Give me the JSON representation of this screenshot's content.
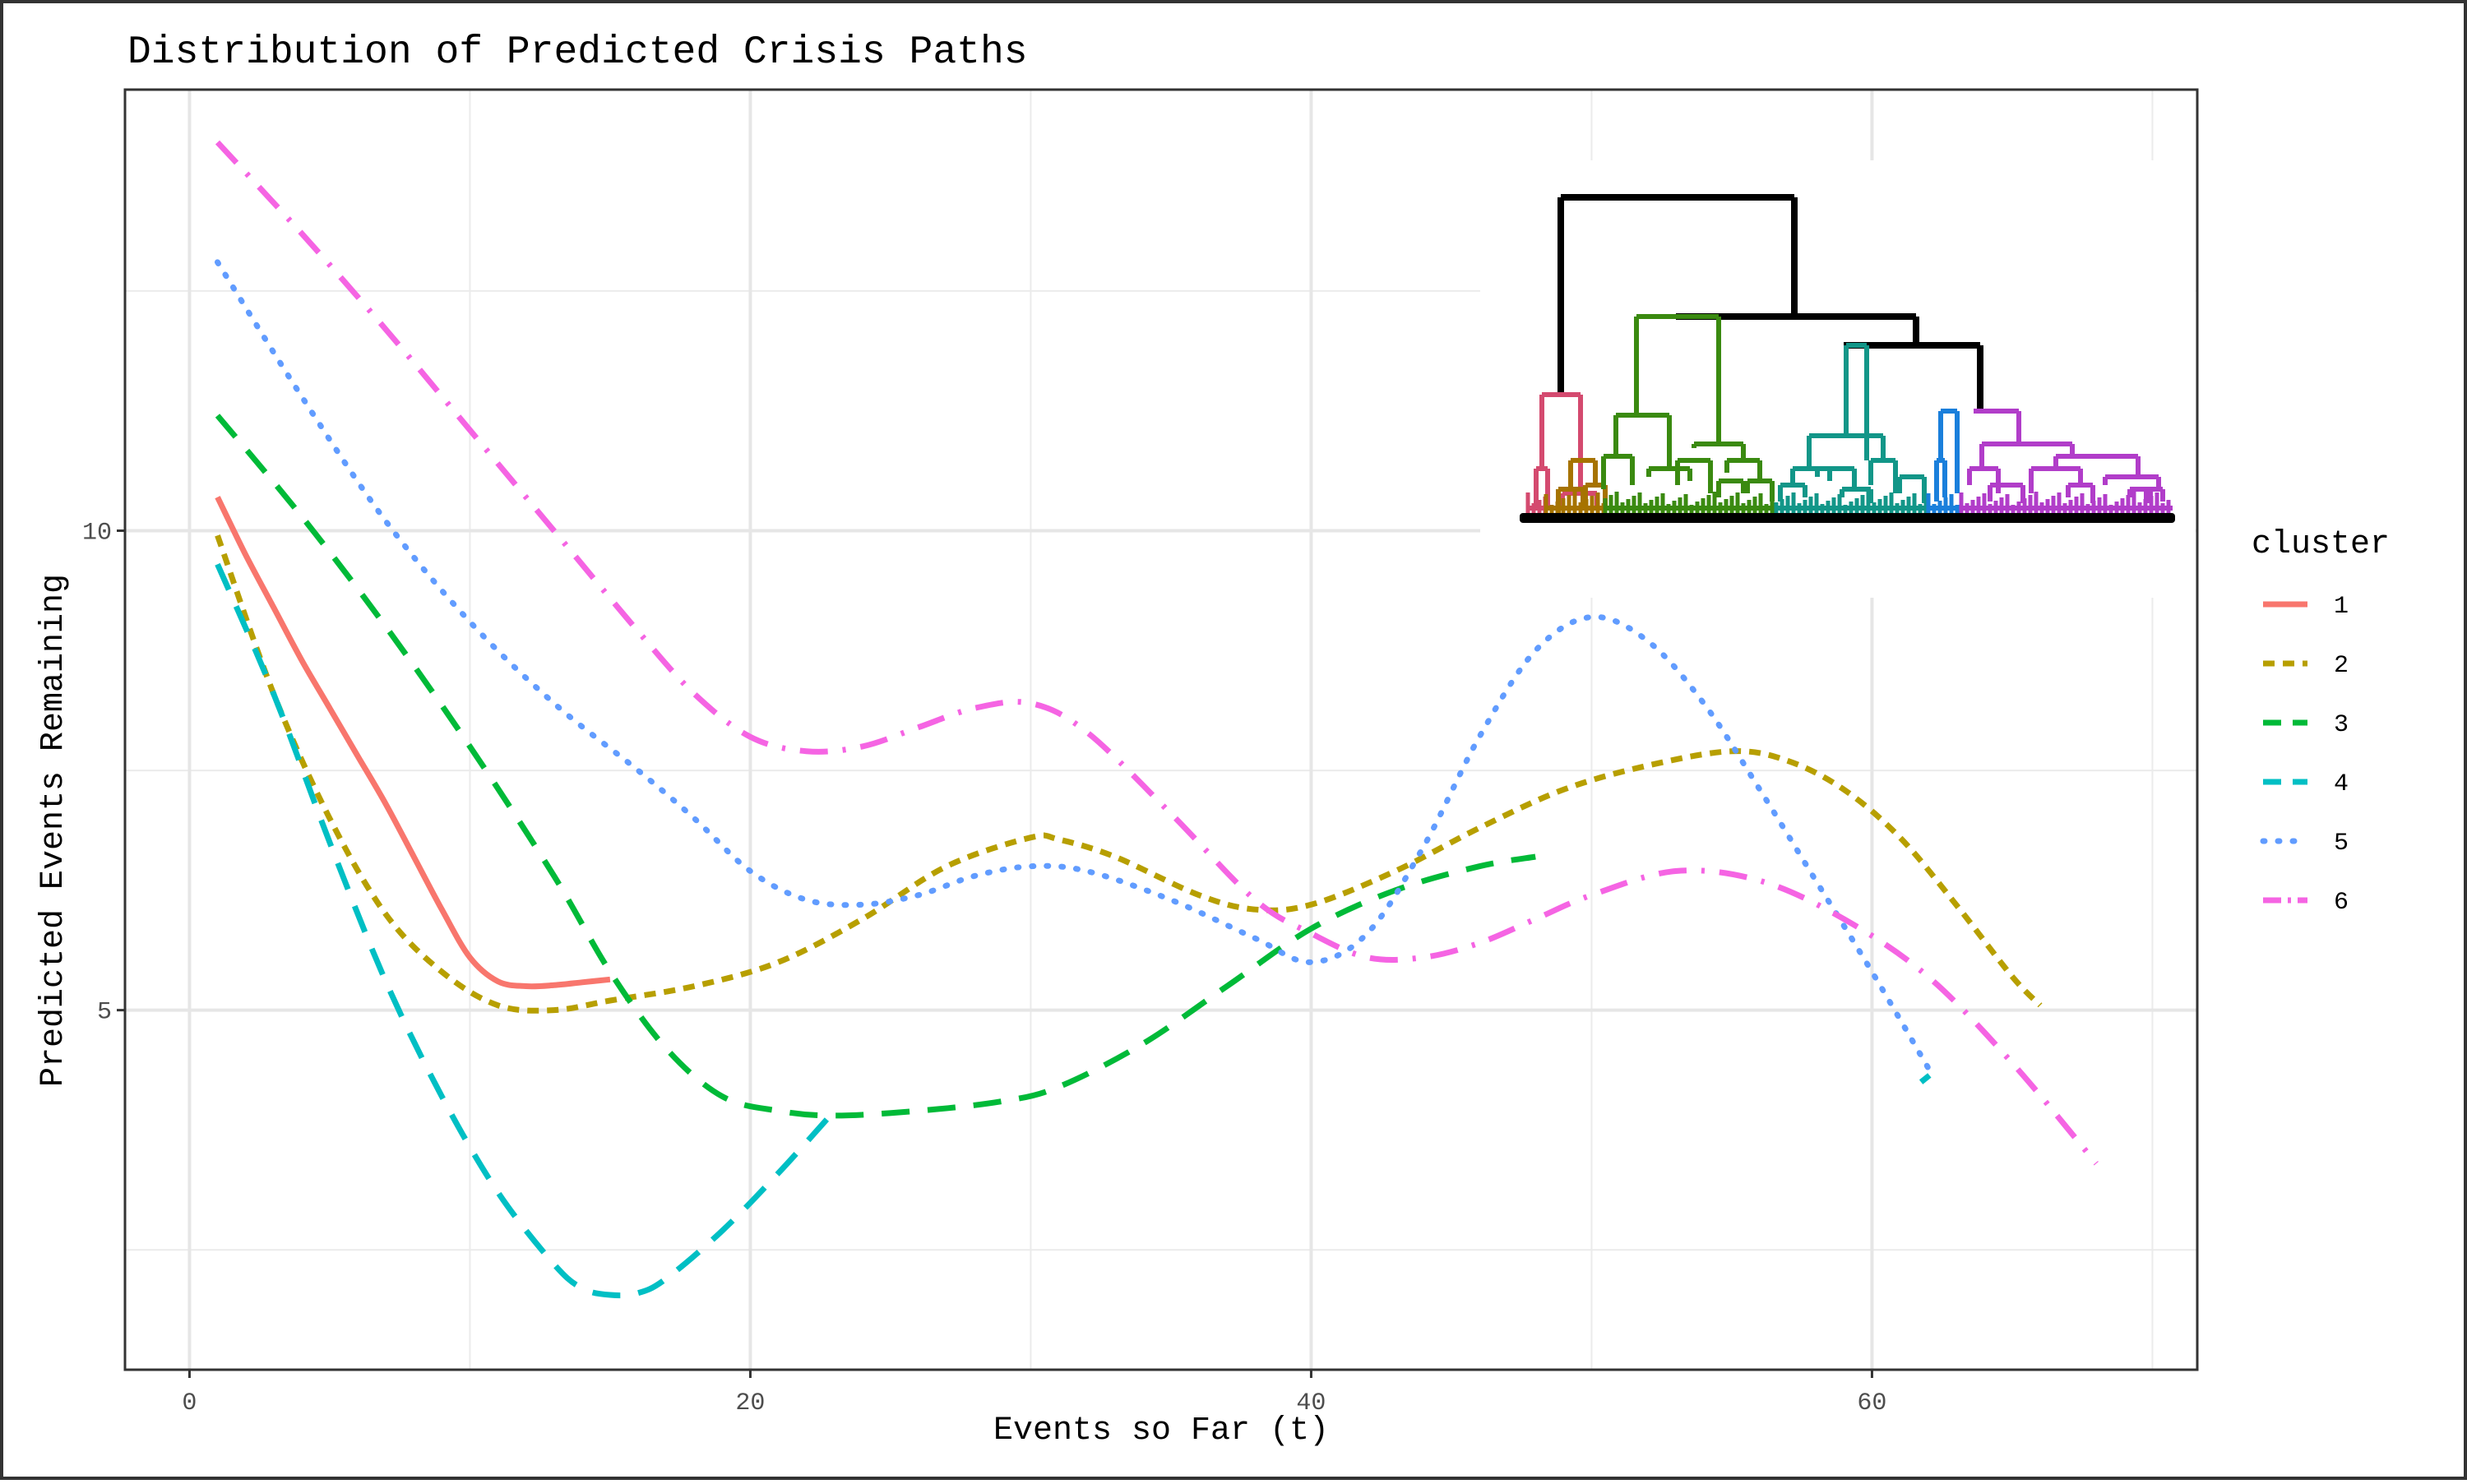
{
  "chart_data": {
    "type": "line",
    "title": "Distribution of Predicted Crisis Paths",
    "xlabel": "Events so Far (t)",
    "ylabel": "Predicted Events Remaining",
    "xlim": [
      -2.3,
      71.6
    ],
    "ylim": [
      1.25,
      14.6
    ],
    "x_ticks": [
      0,
      20,
      40,
      60
    ],
    "x_tick_labels": [
      "0",
      "20",
      "40",
      "60"
    ],
    "y_ticks": [
      5,
      10
    ],
    "y_tick_labels": [
      "5",
      "10"
    ],
    "x_minor_grid": [
      10,
      30,
      50,
      70
    ],
    "y_minor_grid": [
      2.5,
      7.5,
      12.5
    ],
    "grid": true,
    "legend": {
      "title": "cluster",
      "position": "right"
    },
    "series": [
      {
        "name": "1",
        "color": "#F8766D",
        "dash": "solid",
        "points": [
          [
            1,
            10.35
          ],
          [
            2,
            9.75
          ],
          [
            3,
            9.2
          ],
          [
            4,
            8.65
          ],
          [
            5,
            8.15
          ],
          [
            6,
            7.65
          ],
          [
            7,
            7.15
          ],
          [
            8,
            6.6
          ],
          [
            9,
            6.05
          ],
          [
            10,
            5.55
          ],
          [
            11,
            5.3
          ],
          [
            12,
            5.25
          ],
          [
            13,
            5.26
          ],
          [
            14,
            5.29
          ],
          [
            15,
            5.32
          ]
        ]
      },
      {
        "name": "2",
        "color": "#B79F00",
        "dash": "short",
        "points": [
          [
            1,
            9.95
          ],
          [
            3,
            8.3
          ],
          [
            5,
            7.0
          ],
          [
            7,
            6.0
          ],
          [
            9,
            5.4
          ],
          [
            11,
            5.05
          ],
          [
            13,
            5.0
          ],
          [
            15,
            5.1
          ],
          [
            18,
            5.25
          ],
          [
            21,
            5.5
          ],
          [
            24,
            5.95
          ],
          [
            27,
            6.5
          ],
          [
            30,
            6.8
          ],
          [
            31,
            6.78
          ],
          [
            33,
            6.6
          ],
          [
            36,
            6.2
          ],
          [
            38,
            6.05
          ],
          [
            40,
            6.1
          ],
          [
            43,
            6.45
          ],
          [
            46,
            6.9
          ],
          [
            49,
            7.3
          ],
          [
            52,
            7.55
          ],
          [
            55,
            7.7
          ],
          [
            57,
            7.6
          ],
          [
            59,
            7.3
          ],
          [
            61,
            6.8
          ],
          [
            63,
            6.1
          ],
          [
            65,
            5.35
          ],
          [
            66,
            5.05
          ]
        ]
      },
      {
        "name": "3",
        "color": "#00BA38",
        "dash": "long",
        "points": [
          [
            1,
            11.2
          ],
          [
            4,
            10.15
          ],
          [
            7,
            9.0
          ],
          [
            10,
            7.75
          ],
          [
            13,
            6.4
          ],
          [
            15,
            5.4
          ],
          [
            17,
            4.6
          ],
          [
            19,
            4.1
          ],
          [
            21,
            3.95
          ],
          [
            23,
            3.9
          ],
          [
            26,
            3.95
          ],
          [
            29,
            4.05
          ],
          [
            31,
            4.2
          ],
          [
            34,
            4.65
          ],
          [
            37,
            5.25
          ],
          [
            40,
            5.85
          ],
          [
            43,
            6.25
          ],
          [
            46,
            6.5
          ],
          [
            48,
            6.6
          ]
        ]
      },
      {
        "name": "4",
        "color": "#00BFC4",
        "dash": "long",
        "points": [
          [
            1,
            9.65
          ],
          [
            3,
            8.3
          ],
          [
            5,
            6.75
          ],
          [
            7,
            5.3
          ],
          [
            9,
            4.1
          ],
          [
            11,
            3.1
          ],
          [
            13,
            2.35
          ],
          [
            14,
            2.1
          ],
          [
            15,
            2.03
          ],
          [
            16,
            2.05
          ],
          [
            17,
            2.2
          ],
          [
            19,
            2.7
          ],
          [
            21,
            3.3
          ],
          [
            23,
            3.95
          ]
        ]
      },
      {
        "name": "4",
        "color": "#00BFC4",
        "dash": "long",
        "legend": false,
        "points": [
          [
            61.75,
            4.25
          ],
          [
            62.05,
            4.32
          ]
        ]
      },
      {
        "name": "5",
        "color": "#619CFF",
        "dash": "dotted",
        "points": [
          [
            1,
            12.8
          ],
          [
            4,
            11.4
          ],
          [
            7,
            10.1
          ],
          [
            10,
            9.05
          ],
          [
            13,
            8.2
          ],
          [
            16,
            7.5
          ],
          [
            18,
            7.0
          ],
          [
            20,
            6.45
          ],
          [
            22,
            6.15
          ],
          [
            24,
            6.1
          ],
          [
            26,
            6.2
          ],
          [
            28,
            6.4
          ],
          [
            30,
            6.5
          ],
          [
            32,
            6.45
          ],
          [
            35,
            6.15
          ],
          [
            38,
            5.75
          ],
          [
            40,
            5.5
          ],
          [
            42,
            5.8
          ],
          [
            44,
            6.7
          ],
          [
            46,
            7.85
          ],
          [
            48,
            8.75
          ],
          [
            50,
            9.1
          ],
          [
            52,
            8.85
          ],
          [
            54,
            8.2
          ],
          [
            56,
            7.3
          ],
          [
            58,
            6.35
          ],
          [
            60,
            5.4
          ],
          [
            62,
            4.4
          ]
        ]
      },
      {
        "name": "6",
        "color": "#F564E3",
        "dash": "dashdot",
        "points": [
          [
            1,
            14.05
          ],
          [
            4,
            13.1
          ],
          [
            7,
            12.1
          ],
          [
            10,
            11.05
          ],
          [
            13,
            10.0
          ],
          [
            16,
            8.95
          ],
          [
            18,
            8.3
          ],
          [
            20,
            7.85
          ],
          [
            22,
            7.7
          ],
          [
            24,
            7.75
          ],
          [
            26,
            7.95
          ],
          [
            28,
            8.15
          ],
          [
            30,
            8.2
          ],
          [
            32,
            7.9
          ],
          [
            35,
            7.05
          ],
          [
            38,
            6.15
          ],
          [
            40,
            5.8
          ],
          [
            42,
            5.55
          ],
          [
            44,
            5.55
          ],
          [
            46,
            5.7
          ],
          [
            48,
            5.95
          ],
          [
            50,
            6.2
          ],
          [
            53,
            6.45
          ],
          [
            56,
            6.35
          ],
          [
            59,
            5.95
          ],
          [
            62,
            5.35
          ],
          [
            65,
            4.45
          ],
          [
            68,
            3.4
          ]
        ]
      }
    ],
    "inset_dendrogram": {
      "clusters": [
        {
          "color": "#D44A6F"
        },
        {
          "color": "#A67300"
        },
        {
          "color": "#3A8A10"
        },
        {
          "color": "#129688"
        },
        {
          "color": "#1A7FDB"
        },
        {
          "color": "#B13DC9"
        }
      ],
      "merge_color": "#000000"
    }
  }
}
